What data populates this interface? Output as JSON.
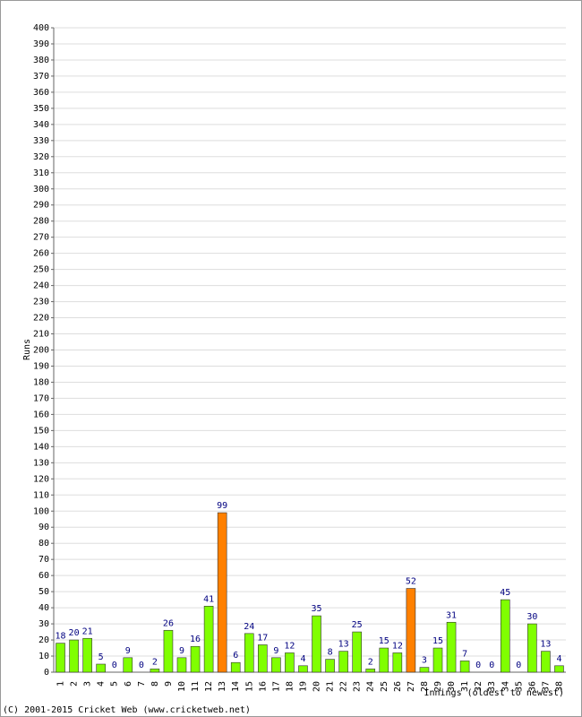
{
  "chart_data": {
    "type": "bar",
    "x_label": "Innings (oldest to newest)",
    "y_label": "Runs",
    "footer": "(C) 2001-2015 Cricket Web (www.cricketweb.net)",
    "categories": [
      "1",
      "2",
      "3",
      "4",
      "5",
      "6",
      "7",
      "8",
      "9",
      "10",
      "11",
      "12",
      "13",
      "14",
      "15",
      "16",
      "17",
      "18",
      "19",
      "20",
      "21",
      "22",
      "23",
      "24",
      "25",
      "26",
      "27",
      "28",
      "29",
      "30",
      "31",
      "32",
      "33",
      "34",
      "35",
      "36",
      "37",
      "38"
    ],
    "values": [
      18,
      20,
      21,
      5,
      0,
      9,
      0,
      2,
      26,
      9,
      16,
      41,
      99,
      6,
      24,
      17,
      9,
      12,
      4,
      35,
      8,
      13,
      25,
      2,
      15,
      12,
      52,
      3,
      15,
      31,
      7,
      0,
      0,
      45,
      0,
      30,
      13,
      4
    ],
    "colors": [
      "#80ff00",
      "#80ff00",
      "#80ff00",
      "#80ff00",
      "#80ff00",
      "#80ff00",
      "#80ff00",
      "#80ff00",
      "#80ff00",
      "#80ff00",
      "#80ff00",
      "#80ff00",
      "#ff8000",
      "#80ff00",
      "#80ff00",
      "#80ff00",
      "#80ff00",
      "#80ff00",
      "#80ff00",
      "#80ff00",
      "#80ff00",
      "#80ff00",
      "#80ff00",
      "#80ff00",
      "#80ff00",
      "#80ff00",
      "#ff8000",
      "#80ff00",
      "#80ff00",
      "#80ff00",
      "#80ff00",
      "#80ff00",
      "#80ff00",
      "#80ff00",
      "#80ff00",
      "#80ff00",
      "#80ff00",
      "#80ff00"
    ],
    "ylim": [
      0,
      400
    ],
    "yticks": [
      0,
      10,
      20,
      30,
      40,
      50,
      60,
      70,
      80,
      90,
      100,
      110,
      120,
      130,
      140,
      150,
      160,
      170,
      180,
      190,
      200,
      210,
      220,
      230,
      240,
      250,
      260,
      270,
      280,
      290,
      300,
      310,
      320,
      330,
      340,
      350,
      360,
      370,
      380,
      390,
      400
    ],
    "grid": true
  }
}
